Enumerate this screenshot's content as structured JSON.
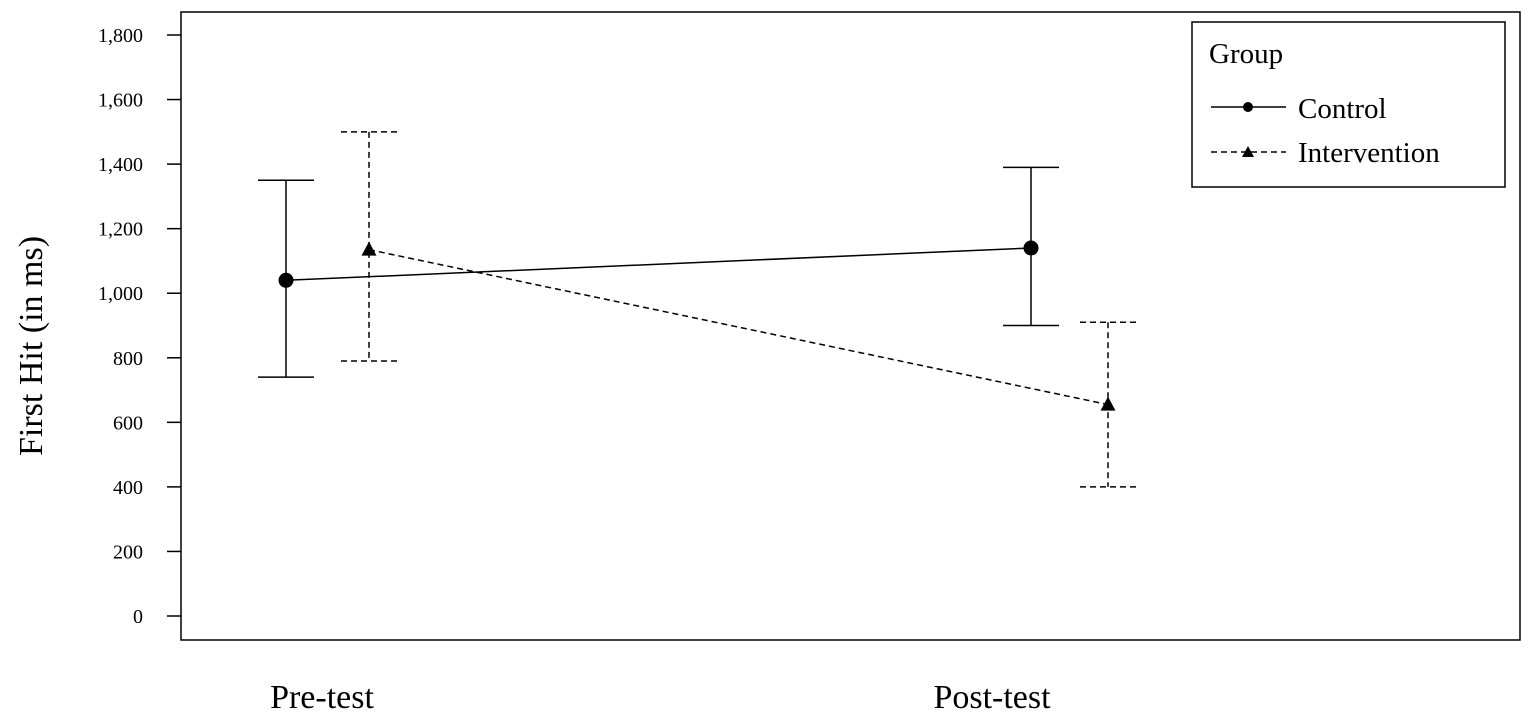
{
  "chart_data": {
    "type": "line",
    "ylabel": "First Hit (in ms)",
    "categories": [
      "Pre-test",
      "Post-test"
    ],
    "ylim": [
      0,
      1800
    ],
    "yticks": [
      0,
      200,
      400,
      600,
      800,
      1000,
      1200,
      1400,
      1600,
      1800
    ],
    "ytick_labels": [
      "0",
      "200",
      "400",
      "600",
      "800",
      "1,000",
      "1,200",
      "1,400",
      "1,600",
      "1,800"
    ],
    "grid": false,
    "legend": {
      "title": "Group",
      "placement": "top-right"
    },
    "series": [
      {
        "name": "Control",
        "marker": "circle",
        "line_style": "solid",
        "values": [
          1040,
          1140
        ],
        "error_low": [
          740,
          900
        ],
        "error_high": [
          1350,
          1390
        ]
      },
      {
        "name": "Intervention",
        "marker": "triangle",
        "line_style": "dashed",
        "values": [
          1135,
          655
        ],
        "error_low": [
          790,
          400
        ],
        "error_high": [
          1500,
          910
        ]
      }
    ]
  }
}
